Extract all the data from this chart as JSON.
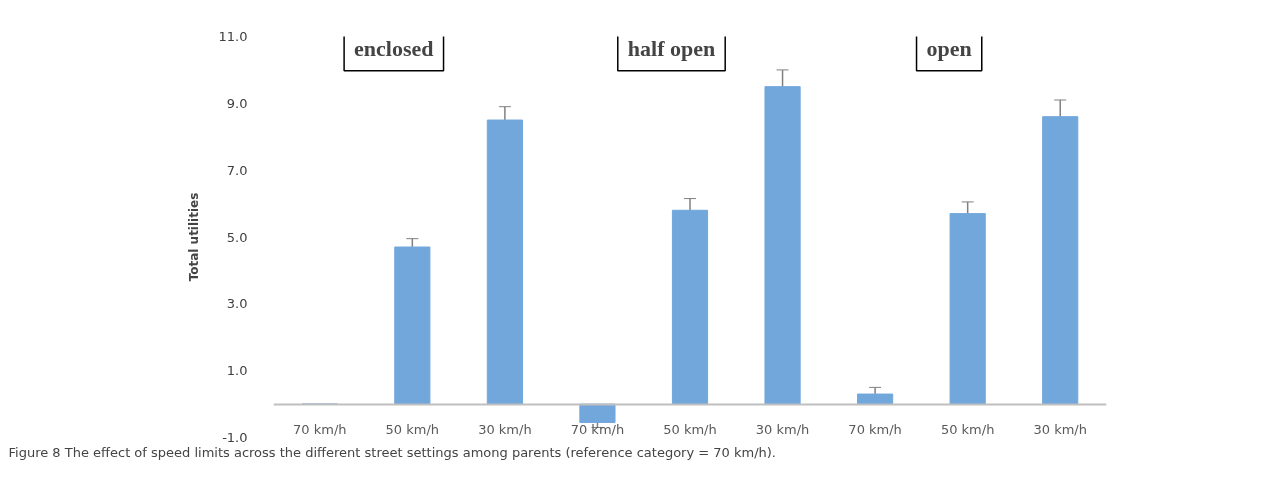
{
  "chart_data": {
    "type": "bar",
    "ylabel": "Total utilities",
    "categories": [
      "70 km/h",
      "50 km/h",
      "30 km/h",
      "70 km/h",
      "50 km/h",
      "30 km/h",
      "70 km/h",
      "50 km/h",
      "30 km/h"
    ],
    "values": [
      0,
      4.7,
      8.5,
      -0.55,
      5.8,
      9.5,
      0.3,
      5.7,
      8.6
    ],
    "errors": [
      null,
      0.25,
      0.4,
      0.15,
      0.35,
      0.5,
      0.2,
      0.35,
      0.5
    ],
    "color": "#72a7dc",
    "ylim": [
      -1,
      11
    ],
    "yticks": [
      {
        "value": -1,
        "label": "-1.0"
      },
      {
        "value": 1,
        "label": "1.0"
      },
      {
        "value": 3,
        "label": "3.0"
      },
      {
        "value": 5,
        "label": "5.0"
      },
      {
        "value": 7,
        "label": "7.0"
      },
      {
        "value": 9,
        "label": "9.0"
      },
      {
        "value": 11,
        "label": "11.0"
      }
    ],
    "grid": false,
    "annotations": [
      "enclosed",
      "half open",
      "open",
      "Figure 8 The effect of speed limits across the different street settings among parents (reference category = 70 km/h)."
    ]
  }
}
